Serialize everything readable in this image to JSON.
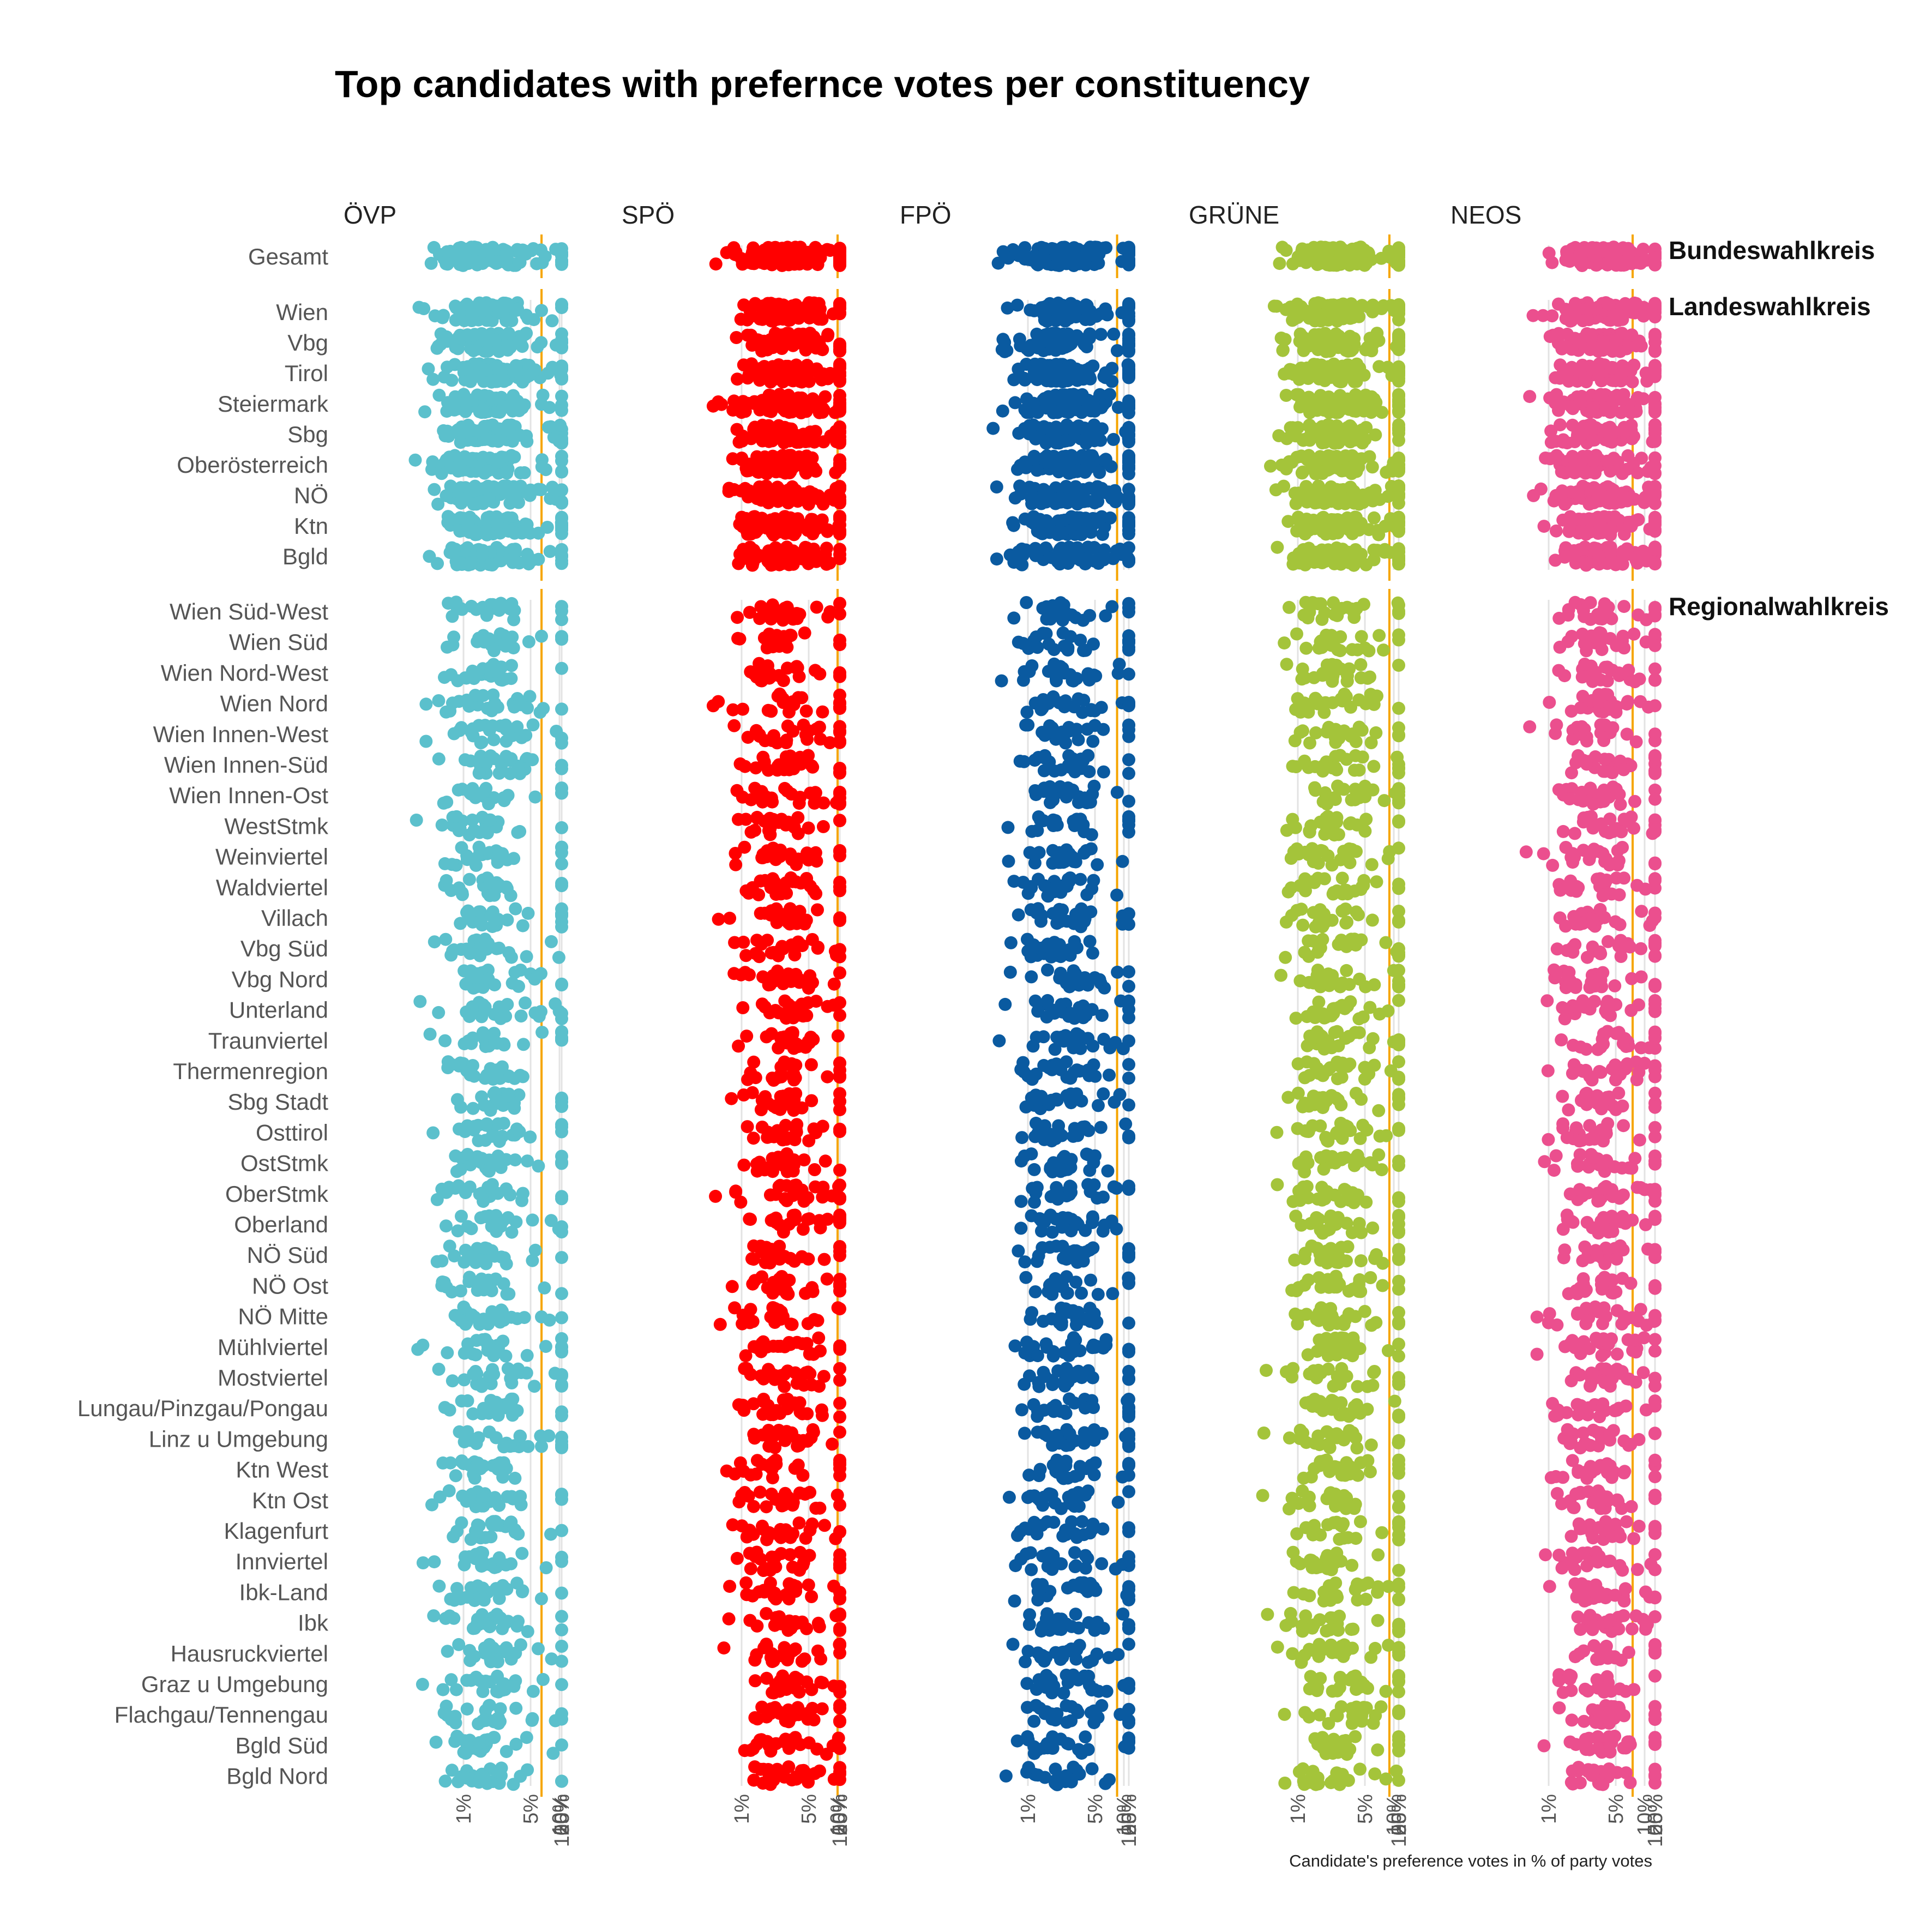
{
  "chart_data": {
    "type": "scatter",
    "title": "Top candidates with prefernce votes per constituency",
    "xlabel": "Candidate's preference votes in % of party votes",
    "x_scale": "log",
    "x_ticks": [
      1,
      5,
      10,
      25,
      50,
      100
    ],
    "x_tick_labels": [
      "1%",
      "5%",
      "10%",
      "25%",
      "50%",
      "100%"
    ],
    "parties": [
      {
        "name": "ÖVP",
        "color": "#5BC0CC",
        "lo": 0.5,
        "hi": 3.0,
        "threshold": 6.5
      },
      {
        "name": "SPÖ",
        "color": "#FF0000",
        "lo": 0.8,
        "hi": 4.5,
        "threshold": 10
      },
      {
        "name": "FPÖ",
        "color": "#0A5AA0",
        "lo": 0.7,
        "hi": 4.0,
        "threshold": 8.5
      },
      {
        "name": "GRÜNE",
        "color": "#A4C43A",
        "lo": 0.8,
        "hi": 4.0,
        "threshold": 9
      },
      {
        "name": "NEOS",
        "color": "#EB4F8E",
        "lo": 1.5,
        "hi": 5.0,
        "threshold": 7.5
      }
    ],
    "threshold_color": "#F6A500",
    "tiers": [
      {
        "label": "Bundeswahlkreis",
        "rows": [
          "Gesamt"
        ]
      },
      {
        "label": "Landeswahlkreis",
        "rows": [
          "Wien",
          "Vbg",
          "Tirol",
          "Steiermark",
          "Sbg",
          "Oberösterreich",
          "NÖ",
          "Ktn",
          "Bgld"
        ]
      },
      {
        "label": "Regionalwahlkreis",
        "rows": [
          "Wien Süd-West",
          "Wien Süd",
          "Wien Nord-West",
          "Wien Nord",
          "Wien Innen-West",
          "Wien Innen-Süd",
          "Wien Innen-Ost",
          "WestStmk",
          "Weinviertel",
          "Waldviertel",
          "Villach",
          "Vbg Süd",
          "Vbg Nord",
          "Unterland",
          "Traunviertel",
          "Thermenregion",
          "Sbg Stadt",
          "Osttirol",
          "OstStmk",
          "OberStmk",
          "Oberland",
          "NÖ Süd",
          "NÖ Ost",
          "NÖ Mitte",
          "Mühlviertel",
          "Mostviertel",
          "Lungau/Pinzgau/Pongau",
          "Linz u Umgebung",
          "Ktn West",
          "Ktn Ost",
          "Klagenfurt",
          "Innviertel",
          "Ibk-Land",
          "Ibk",
          "Hausruckviertel",
          "Graz u Umgebung",
          "Flachgau/Tennengau",
          "Bgld Süd",
          "Bgld Nord"
        ]
      }
    ]
  }
}
